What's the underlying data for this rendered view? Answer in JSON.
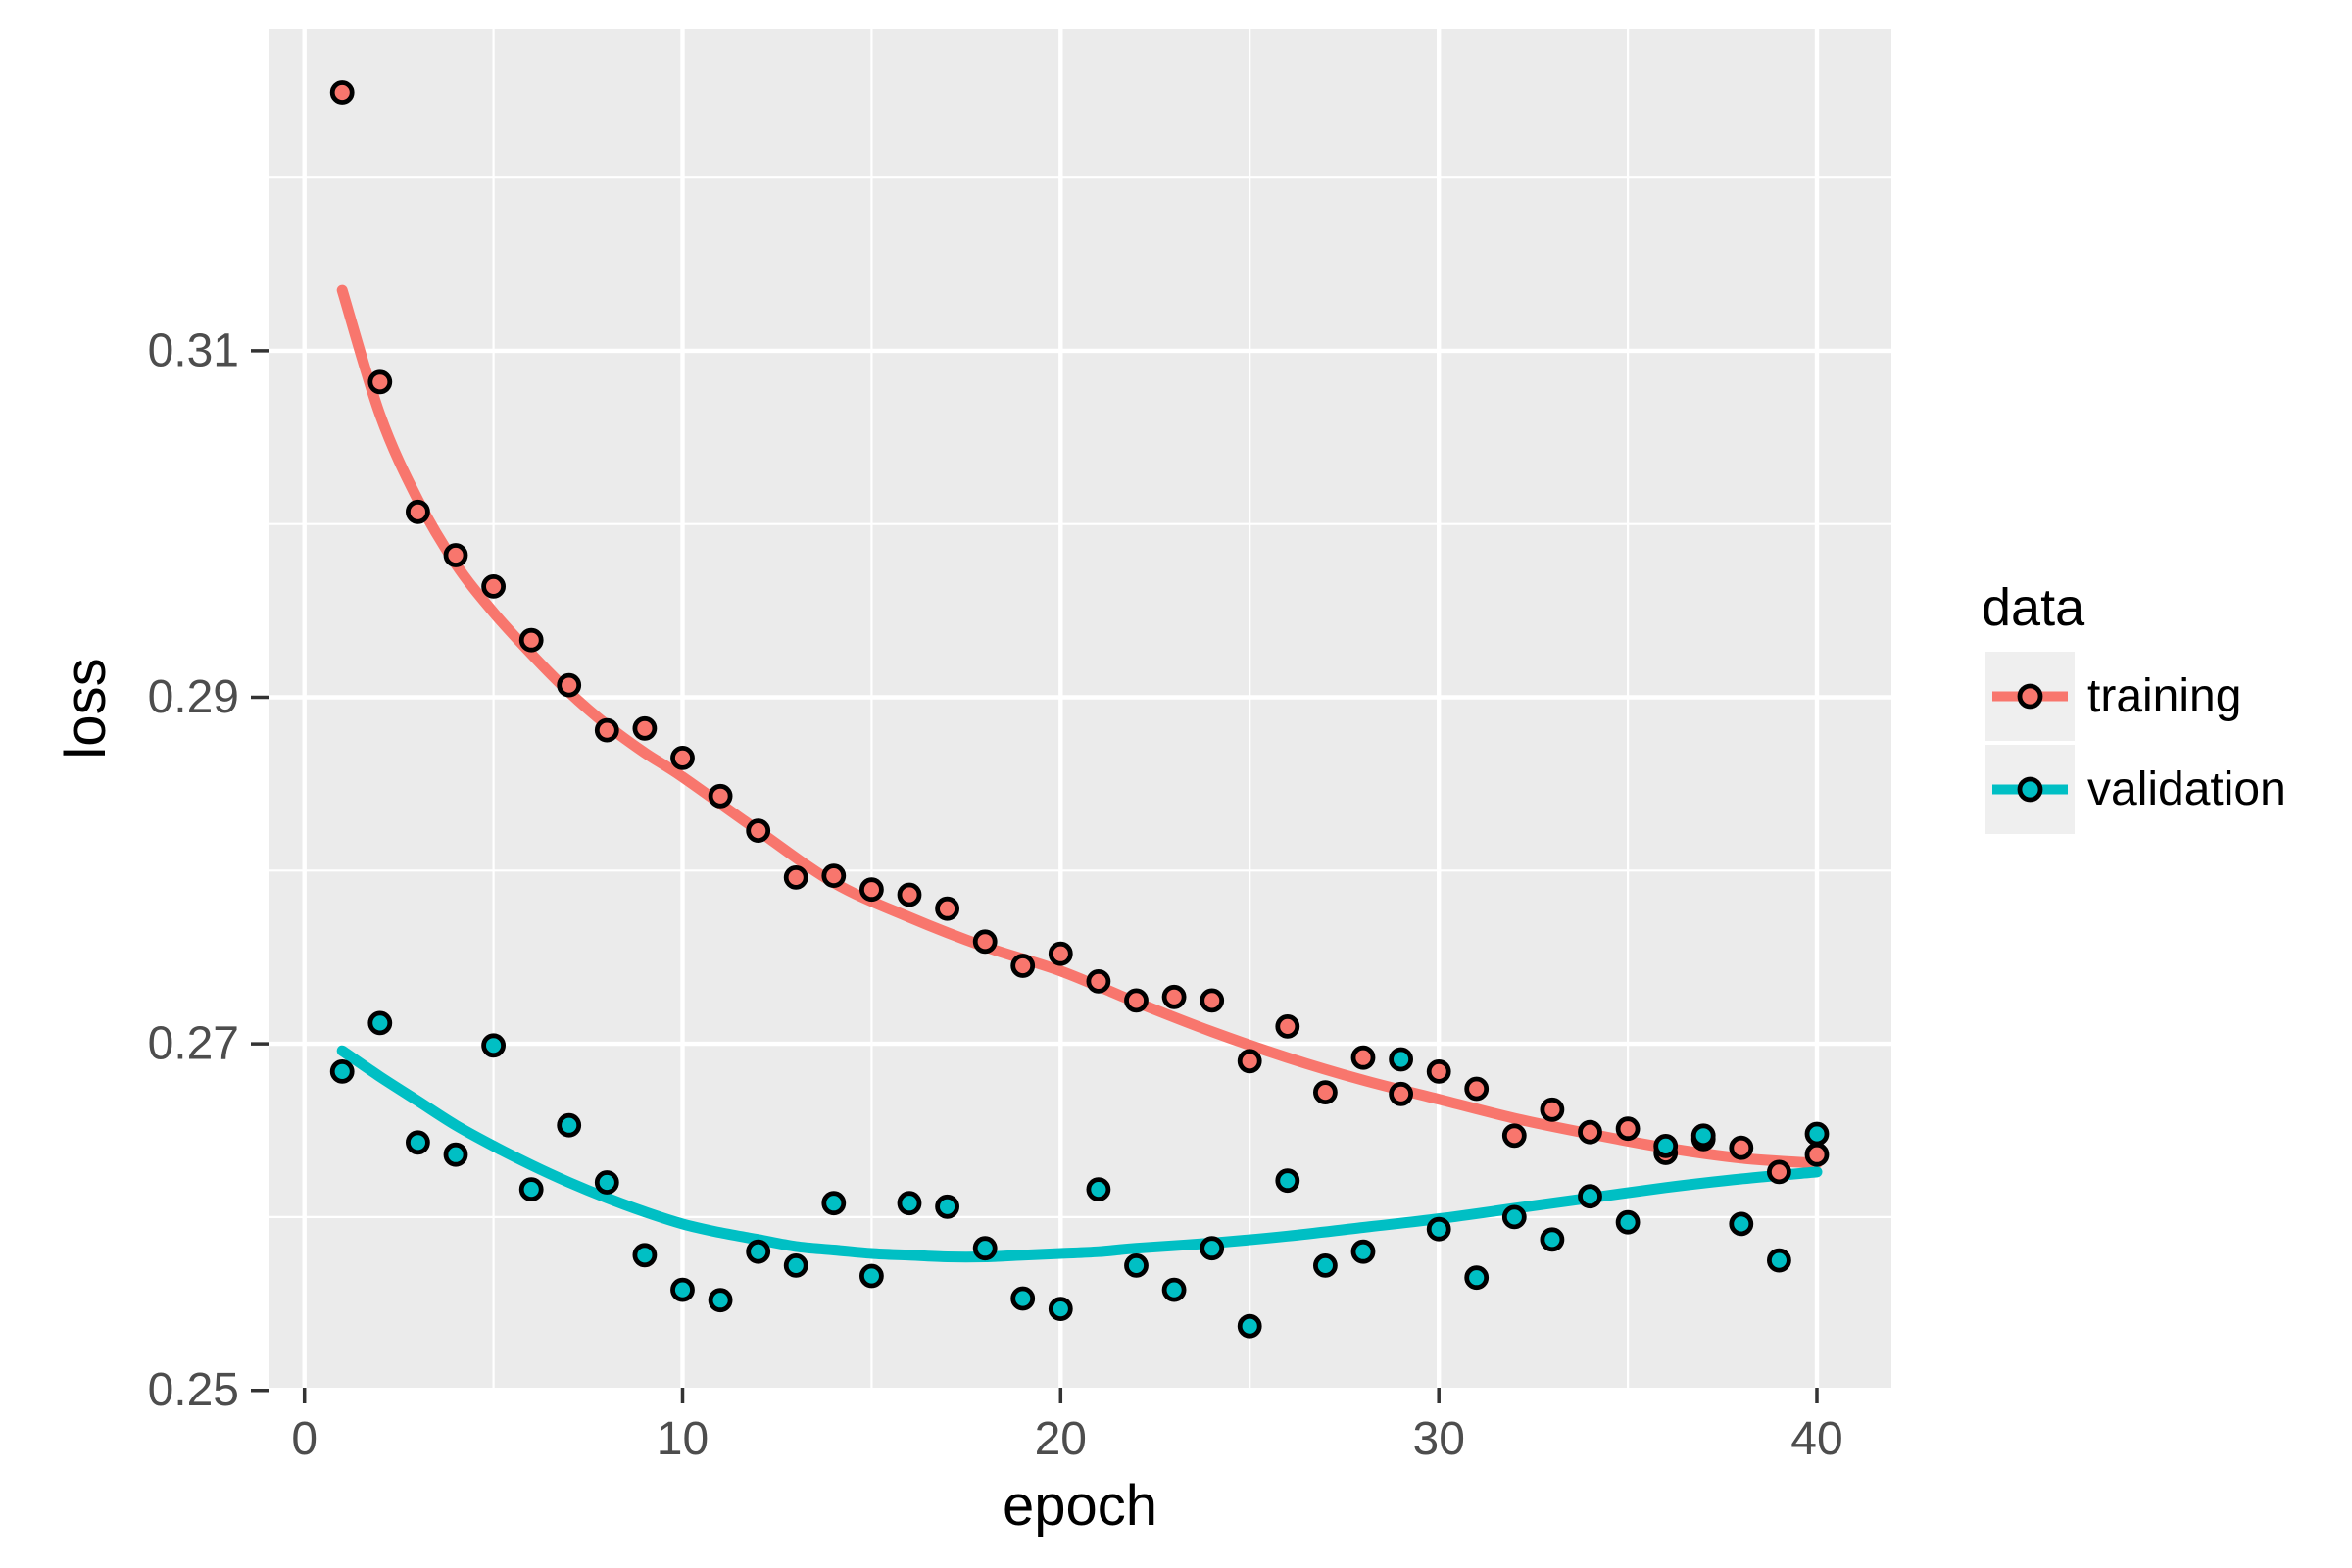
{
  "chart_data": {
    "type": "scatter",
    "title": "",
    "xlabel": "epoch",
    "ylabel": "loss",
    "grid": true,
    "x_axis": {
      "ticks": [
        0,
        10,
        20,
        30,
        40
      ],
      "tick_labels": [
        "0",
        "10",
        "20",
        "30",
        "40"
      ],
      "minor_ticks": [
        5,
        15,
        25,
        35
      ],
      "range": [
        -0.95,
        41.97
      ]
    },
    "y_axis": {
      "ticks": [
        0.25,
        0.27,
        0.29,
        0.31
      ],
      "tick_labels": [
        "0.25",
        "0.27",
        "0.29",
        "0.31"
      ],
      "minor_ticks": [
        0.26,
        0.28,
        0.3,
        0.32
      ],
      "range": [
        0.25015,
        0.32855
      ]
    },
    "legend": {
      "title": "data",
      "position": "right"
    },
    "x": [
      1,
      2,
      3,
      4,
      5,
      6,
      7,
      8,
      9,
      10,
      11,
      12,
      13,
      14,
      15,
      16,
      17,
      18,
      19,
      20,
      21,
      22,
      23,
      24,
      25,
      26,
      27,
      28,
      29,
      30,
      31,
      32,
      33,
      34,
      35,
      36,
      37,
      38,
      39,
      40
    ],
    "series": [
      {
        "name": "training",
        "color": "#F8766D",
        "values": [
          0.3249,
          0.3082,
          0.3007,
          0.2982,
          0.2964,
          0.2933,
          0.2907,
          0.2881,
          0.2882,
          0.2865,
          0.2843,
          0.2823,
          0.2796,
          0.2797,
          0.2789,
          0.2786,
          0.2778,
          0.2759,
          0.2745,
          0.2752,
          0.2736,
          0.2725,
          0.2727,
          0.2725,
          0.269,
          0.271,
          0.2672,
          0.2692,
          0.2671,
          0.2684,
          0.2674,
          0.2647,
          0.2662,
          0.2649,
          0.2651,
          0.2637,
          0.2645,
          0.264,
          0.2626,
          0.2636
        ],
        "trend": [
          [
            1,
            0.3135
          ],
          [
            2,
            0.3063
          ],
          [
            3,
            0.3014
          ],
          [
            4,
            0.2977
          ],
          [
            5,
            0.2949
          ],
          [
            6,
            0.2925
          ],
          [
            7,
            0.2903
          ],
          [
            8,
            0.2884
          ],
          [
            9,
            0.2868
          ],
          [
            10,
            0.2854
          ],
          [
            12,
            0.2823
          ],
          [
            14,
            0.2793
          ],
          [
            16,
            0.2773
          ],
          [
            18,
            0.2756
          ],
          [
            20,
            0.2742
          ],
          [
            22,
            0.2724
          ],
          [
            24,
            0.2707
          ],
          [
            26,
            0.2692
          ],
          [
            28,
            0.2679
          ],
          [
            30,
            0.2668
          ],
          [
            32,
            0.2657
          ],
          [
            34,
            0.2648
          ],
          [
            36,
            0.264
          ],
          [
            38,
            0.2634
          ],
          [
            40,
            0.2631
          ]
        ]
      },
      {
        "name": "validation",
        "color": "#00BFC4",
        "values": [
          0.2684,
          0.2712,
          0.2643,
          0.2636,
          0.2699,
          0.2616,
          0.2653,
          0.262,
          0.2578,
          0.2558,
          0.2552,
          0.258,
          0.2572,
          0.2608,
          0.2566,
          0.2608,
          0.2606,
          0.2582,
          0.2553,
          0.2547,
          0.2616,
          0.2572,
          0.2558,
          0.2582,
          0.2537,
          0.2621,
          0.2572,
          0.258,
          0.2691,
          0.2593,
          0.2565,
          0.26,
          0.2587,
          0.2612,
          0.2597,
          0.2641,
          0.2647,
          0.2596,
          0.2575,
          0.2648
        ],
        "trend": [
          [
            1,
            0.2696
          ],
          [
            2,
            0.2681
          ],
          [
            3,
            0.2667
          ],
          [
            4,
            0.2653
          ],
          [
            5,
            0.2641
          ],
          [
            6,
            0.263
          ],
          [
            7,
            0.262
          ],
          [
            8,
            0.2611
          ],
          [
            9,
            0.2603
          ],
          [
            10,
            0.2596
          ],
          [
            11,
            0.2591
          ],
          [
            12,
            0.2587
          ],
          [
            13,
            0.2583
          ],
          [
            14,
            0.2581
          ],
          [
            15,
            0.2579
          ],
          [
            16,
            0.2578
          ],
          [
            17,
            0.2577
          ],
          [
            18,
            0.2577
          ],
          [
            19,
            0.2578
          ],
          [
            20,
            0.2579
          ],
          [
            21,
            0.258
          ],
          [
            22,
            0.2582
          ],
          [
            24,
            0.2585
          ],
          [
            26,
            0.2589
          ],
          [
            28,
            0.2594
          ],
          [
            30,
            0.2599
          ],
          [
            32,
            0.2605
          ],
          [
            34,
            0.2611
          ],
          [
            36,
            0.2617
          ],
          [
            38,
            0.2622
          ],
          [
            40,
            0.2626
          ]
        ]
      }
    ]
  },
  "style": {
    "panel_bg": "#EBEBEB",
    "grid_color": "#FFFFFF",
    "tick_mark_color": "#333333",
    "tick_label_color": "#4D4D4D",
    "axis_title_color": "#000000",
    "point_stroke": "#000000",
    "legend_key_bg": "#EFEFEF",
    "legend_text_color": "#000000"
  }
}
